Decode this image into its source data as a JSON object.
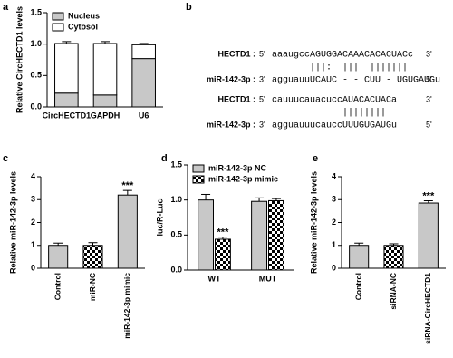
{
  "chart_data": [
    {
      "panel": "a",
      "type": "stacked_bar",
      "ylabel": "Relative CircHECTD1 levels",
      "categories": [
        "CircHECTD1",
        "GAPDH",
        "U6"
      ],
      "series": [
        {
          "name": "Nucleus",
          "color": "#c8c8c8",
          "pattern": "solid",
          "values": [
            0.22,
            0.19,
            0.77
          ],
          "errors": [
            0.02,
            0.01,
            0.03
          ]
        },
        {
          "name": "Cytosol",
          "color": "#ffffff",
          "pattern": "solid",
          "values": [
            0.79,
            0.82,
            0.22
          ],
          "errors": [
            0.03,
            0.03,
            0.02
          ]
        }
      ],
      "ylim": [
        0,
        1.5
      ],
      "yticks": [
        {
          "value": 0,
          "label": "0.0"
        },
        {
          "value": 0.5,
          "label": "0.5"
        },
        {
          "value": 1,
          "label": "1.0"
        },
        {
          "value": 1.5,
          "label": "1.5"
        }
      ],
      "legend": "upper-left"
    },
    {
      "panel": "c",
      "type": "bar",
      "ylabel": "Relative miR-142-3p levels",
      "categories": [
        "Control",
        "miR-NC",
        "miR-142-3p mimic"
      ],
      "values": [
        1.0,
        1.0,
        3.2
      ],
      "errors": [
        0.1,
        0.12,
        0.2
      ],
      "color": "#c8c8c8",
      "patterns": [
        "solid",
        "checker",
        "solid"
      ],
      "significance": [
        null,
        null,
        "***"
      ],
      "ylim": [
        0,
        4
      ],
      "yticks": [
        0,
        1,
        2,
        3,
        4
      ]
    },
    {
      "panel": "d",
      "type": "grouped_bar",
      "ylabel": "luc/R-Luc",
      "categories": [
        "WT",
        "MUT"
      ],
      "series": [
        {
          "name": "miR-142-3p NC",
          "color": "#c8c8c8",
          "pattern": "solid",
          "values": [
            1.0,
            0.98
          ],
          "errors": [
            0.08,
            0.05
          ],
          "significance": [
            null,
            null
          ]
        },
        {
          "name": "miR-142-3p mimic",
          "color": "#c8c8c8",
          "pattern": "checker",
          "values": [
            0.44,
            0.99
          ],
          "errors": [
            0.03,
            0.03
          ],
          "significance": [
            "***",
            null
          ]
        }
      ],
      "ylim": [
        0,
        1.5
      ],
      "yticks": [
        {
          "value": 0,
          "label": "0.0"
        },
        {
          "value": 0.5,
          "label": "0.5"
        },
        {
          "value": 1,
          "label": "1.0"
        },
        {
          "value": 1.5,
          "label": "1.5"
        }
      ],
      "legend": "upper-left"
    },
    {
      "panel": "e",
      "type": "bar",
      "ylabel": "Relative miR-142-3p levels",
      "categories": [
        "Control",
        "siRNA-NC",
        "siRNA-CircHECTD1"
      ],
      "values": [
        1.0,
        1.0,
        2.85
      ],
      "errors": [
        0.1,
        0.07,
        0.1
      ],
      "color": "#c8c8c8",
      "patterns": [
        "solid",
        "checker",
        "solid"
      ],
      "significance": [
        null,
        null,
        "***"
      ],
      "ylim": [
        0,
        4
      ],
      "yticks": [
        0,
        1,
        2,
        3,
        4
      ]
    }
  ],
  "panel_b": {
    "label": "b",
    "alignments": [
      {
        "top_name": "HECTD1 :",
        "top_5": "5'",
        "top_seq": "aaaugccAGUGGACAAACACACUACc",
        "top_3": "3'",
        "pairs": "|||:  |||  |||||||",
        "bottom_name": "miR-142-3p :",
        "bottom_3": "3'",
        "bottom_seq": "agguauuUCAUC - - CUU - UGUGAUGu",
        "bottom_5": "5'"
      },
      {
        "top_name": "HECTD1 :",
        "top_5": "5'",
        "top_seq": "cauuucauacuccAUACACUACa",
        "top_3": "3'",
        "pairs": "||||||||",
        "bottom_name": "miR-142-3p :",
        "bottom_3": "3'",
        "bottom_seq": "agguauuucauccUUUGUGAUGu",
        "bottom_5": "5'"
      }
    ]
  }
}
